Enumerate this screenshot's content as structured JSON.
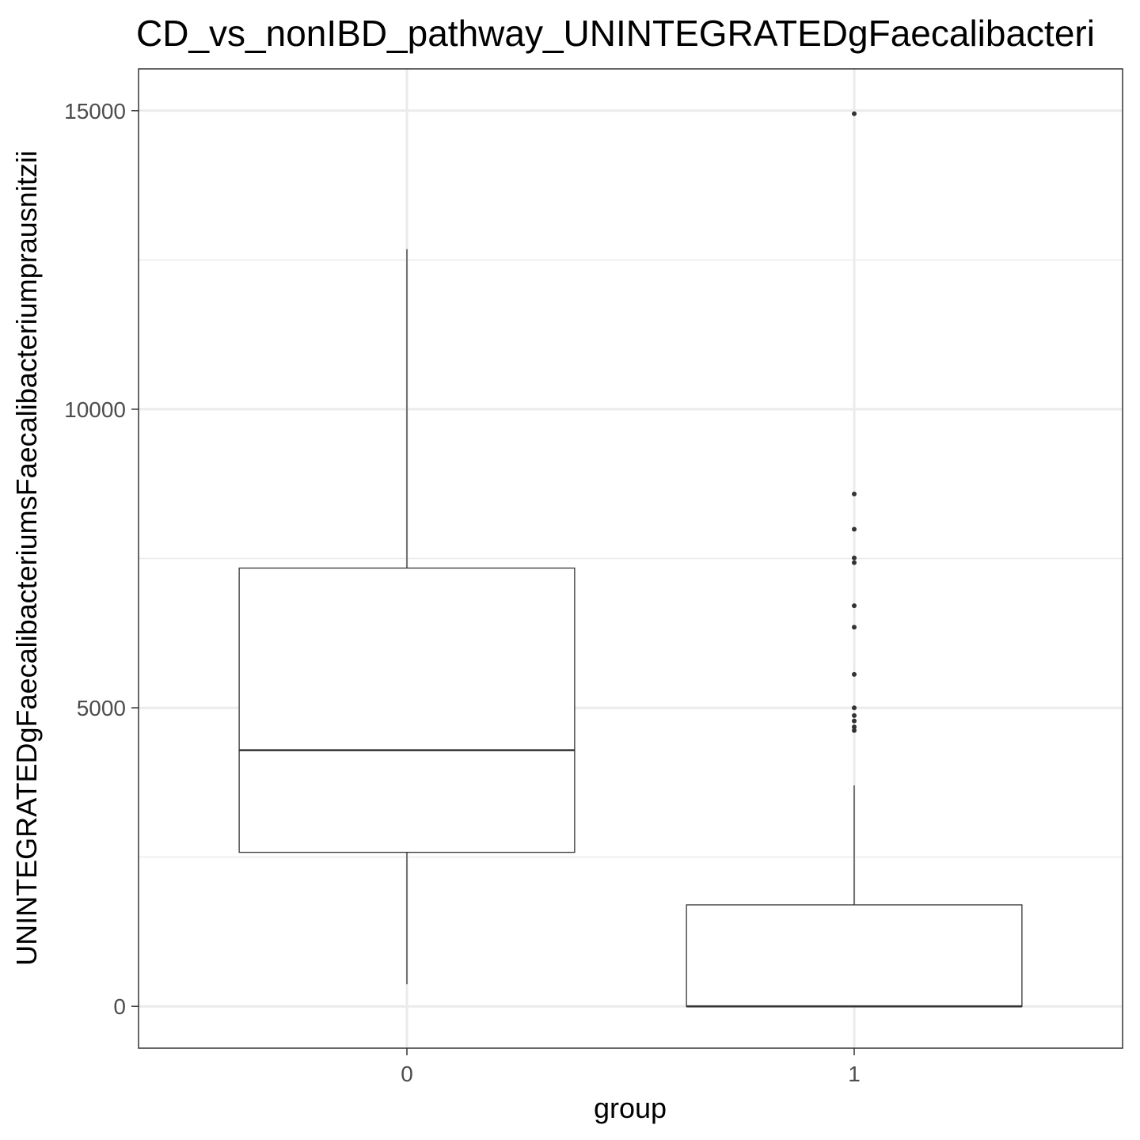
{
  "chart_data": {
    "type": "boxplot",
    "title": "CD_vs_nonIBD_pathway_UNINTEGRATEDgFaecalibacteri",
    "xlabel": "group",
    "ylabel": "UNINTEGRATEDgFaecalibacteriumsFaecalibacteriumprausnitzii",
    "categories": [
      "0",
      "1"
    ],
    "ylim": [
      -700,
      15700
    ],
    "y_ticks": [
      0,
      5000,
      10000,
      15000
    ],
    "y_tick_labels": [
      "0",
      "5000",
      "10000",
      "15000"
    ],
    "y_minor_ticks": [
      2500,
      7500,
      12500
    ],
    "grid": true,
    "boxes": [
      {
        "category": "0",
        "whisker_low": 370,
        "q1": 2580,
        "median": 4290,
        "q3": 7340,
        "whisker_high": 12680,
        "outliers": []
      },
      {
        "category": "1",
        "whisker_low": 0,
        "q1": 0,
        "median": 0,
        "q3": 1700,
        "whisker_high": 3700,
        "outliers": [
          4620,
          4680,
          4780,
          4870,
          5000,
          5560,
          6350,
          6710,
          7430,
          7510,
          7990,
          8580,
          14950
        ]
      }
    ],
    "colors": {
      "box_fill": "#ffffff",
      "box_stroke": "#333333",
      "grid": "#ebebeb",
      "panel_border": "#333333",
      "outlier": "#333333",
      "tick_label": "#4d4d4d"
    }
  }
}
